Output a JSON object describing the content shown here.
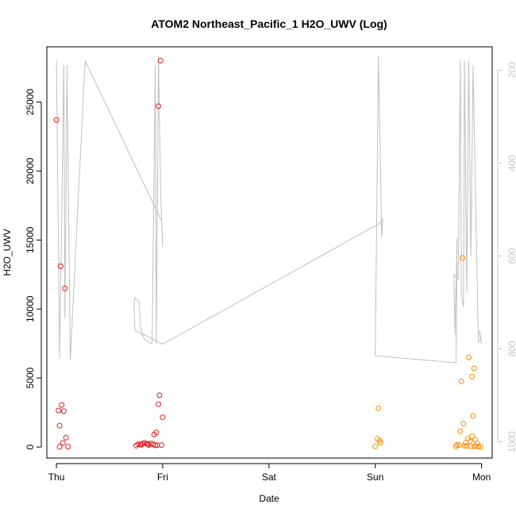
{
  "chart_data": {
    "type": "scatter",
    "title": "ATOM2 Northeast_Pacific_1 H2O_UWV (Log)",
    "xlabel": "Date",
    "ylabel": "H2O_UWV",
    "x_ticks": [
      {
        "label": "Thu",
        "day": 0
      },
      {
        "label": "Fri",
        "day": 1
      },
      {
        "label": "Sat",
        "day": 2
      },
      {
        "label": "Sun",
        "day": 3
      },
      {
        "label": "Mon",
        "day": 4
      }
    ],
    "xlim": [
      -0.09,
      4.1
    ],
    "ylim": [
      -800,
      29000
    ],
    "y_ticks": [
      0,
      5000,
      10000,
      15000,
      20000,
      25000
    ],
    "y2_ticks": [
      200,
      400,
      600,
      800,
      1000
    ],
    "y2lim": [
      150,
      1035
    ],
    "y2_reversed": true,
    "colors": {
      "red": "#e41a1c",
      "orange": "#ff8c00",
      "depth_line": "#c0c0c0"
    },
    "series": [
      {
        "color": "red",
        "points": [
          [
            0.0,
            23700
          ],
          [
            0.04,
            13100
          ],
          [
            0.08,
            11500
          ],
          [
            0.02,
            2650
          ],
          [
            0.05,
            3050
          ],
          [
            0.07,
            2600
          ],
          [
            0.03,
            1550
          ],
          [
            0.09,
            680
          ],
          [
            0.06,
            300
          ],
          [
            0.03,
            20
          ],
          [
            0.11,
            30
          ],
          [
            0.96,
            24700
          ],
          [
            0.98,
            28000
          ],
          [
            0.97,
            3750
          ],
          [
            0.96,
            3100
          ],
          [
            1.0,
            2150
          ],
          [
            0.92,
            900
          ],
          [
            0.94,
            1050
          ],
          [
            0.75,
            100
          ],
          [
            0.77,
            200
          ],
          [
            0.79,
            180
          ],
          [
            0.81,
            250
          ],
          [
            0.83,
            300
          ],
          [
            0.85,
            230
          ],
          [
            0.87,
            150
          ],
          [
            0.89,
            260
          ],
          [
            0.91,
            200
          ],
          [
            0.93,
            120
          ],
          [
            0.95,
            130
          ],
          [
            0.99,
            140
          ],
          [
            0.8,
            160
          ],
          [
            0.86,
            210
          ]
        ]
      },
      {
        "color": "orange",
        "points": [
          [
            3.03,
            2800
          ],
          [
            3.02,
            600
          ],
          [
            3.04,
            450
          ],
          [
            3.05,
            300
          ],
          [
            3.0,
            50
          ],
          [
            3.82,
            13700
          ],
          [
            3.88,
            6500
          ],
          [
            3.93,
            5700
          ],
          [
            3.91,
            5100
          ],
          [
            3.81,
            4750
          ],
          [
            3.92,
            2250
          ],
          [
            3.83,
            1700
          ],
          [
            3.8,
            1150
          ],
          [
            3.91,
            780
          ],
          [
            3.87,
            600
          ],
          [
            3.94,
            550
          ],
          [
            3.89,
            420
          ],
          [
            3.85,
            300
          ],
          [
            3.96,
            250
          ],
          [
            3.77,
            150
          ],
          [
            3.79,
            130
          ],
          [
            3.84,
            100
          ],
          [
            3.86,
            80
          ],
          [
            3.9,
            60
          ],
          [
            3.93,
            40
          ],
          [
            3.97,
            30
          ],
          [
            3.99,
            20
          ],
          [
            3.76,
            50
          ],
          [
            3.95,
            90
          ]
        ]
      }
    ],
    "depth_line": {
      "color": "depth_line",
      "points": [
        [
          0.0,
          180
        ],
        [
          0.03,
          820
        ],
        [
          0.07,
          190
        ],
        [
          0.08,
          735
        ],
        [
          0.1,
          190
        ],
        [
          0.13,
          825
        ],
        [
          0.27,
          180
        ],
        [
          0.99,
          525
        ],
        [
          1.0,
          580
        ],
        [
          0.98,
          460
        ],
        [
          0.96,
          170
        ],
        [
          0.94,
          790
        ],
        [
          0.93,
          190
        ],
        [
          0.9,
          790
        ],
        [
          0.83,
          780
        ],
        [
          0.81,
          770
        ],
        [
          0.8,
          760
        ],
        [
          0.79,
          750
        ],
        [
          0.78,
          700
        ],
        [
          0.74,
          690
        ],
        [
          0.73,
          700
        ],
        [
          0.74,
          760
        ],
        [
          1.0,
          790
        ],
        [
          3.04,
          530
        ],
        [
          3.07,
          520
        ],
        [
          3.06,
          560
        ],
        [
          3.03,
          170
        ],
        [
          3.0,
          815
        ],
        [
          3.76,
          830
        ],
        [
          3.77,
          560
        ],
        [
          3.75,
          770
        ],
        [
          3.74,
          640
        ],
        [
          3.78,
          650
        ],
        [
          3.79,
          430
        ],
        [
          3.8,
          180
        ],
        [
          3.81,
          680
        ],
        [
          3.83,
          710
        ],
        [
          3.84,
          180
        ],
        [
          3.86,
          680
        ],
        [
          3.88,
          180
        ],
        [
          3.9,
          600
        ],
        [
          3.92,
          190
        ],
        [
          3.97,
          785
        ],
        [
          3.99,
          780
        ],
        [
          3.98,
          760
        ],
        [
          4.0,
          790
        ]
      ]
    }
  }
}
